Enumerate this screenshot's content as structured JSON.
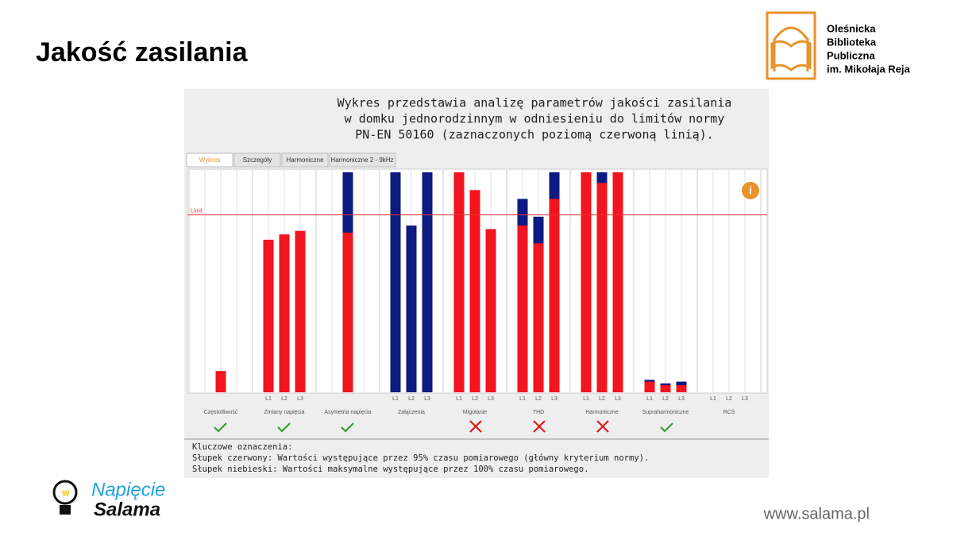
{
  "header": {
    "title": "Jakość zasilania",
    "org": [
      "Oleśnicka",
      "Biblioteka",
      "Publiczna",
      "im. Mikołaja Reja"
    ]
  },
  "footer": {
    "brand": [
      "Napięcie",
      "Salama"
    ],
    "url": "www.salama.pl"
  },
  "panel": {
    "description": [
      "Wykres przedstawia analizę parametrów jakości zasilania",
      "w domku jednorodzinnym w odniesieniu do limitów normy",
      "PN-EN 50160 (zaznaczonych poziomą czerwoną linią)."
    ],
    "tabs": [
      "Wykres",
      "Szczegóły",
      "Harmoniczne",
      "Harmoniczne 2 - 9kHz"
    ],
    "notes": [
      "Kluczowe oznaczenia:",
      "Słupek czerwony: Wartości występujące przez 95% czasu pomiarowego (główny kryterium normy).",
      "Słupek niebieski: Wartości maksymalne występujące przez 100% czasu pomiarowego."
    ]
  },
  "chart_data": {
    "type": "bar",
    "ylim": [
      0,
      124
    ],
    "limit": 100,
    "limit_label": "Limit",
    "limit_color": "#ee3333",
    "groups": [
      "Częstotliwość",
      "Zmiany napięcia",
      "Asymetria napięcia",
      "Załączenia",
      "Migotanie",
      "THD",
      "Harmoniczne",
      "Supraharmoniczne",
      "RCS"
    ],
    "categories": [
      null,
      null,
      null,
      "L1",
      "L2",
      "L3",
      null,
      null,
      null,
      "L1",
      "L2",
      "L3",
      "L1",
      "L2",
      "L3",
      "L1",
      "L2",
      "L3",
      "L1",
      "L2",
      "L3",
      "L1",
      "L2",
      "L3",
      "L1",
      "L2",
      "L3"
    ],
    "series": [
      {
        "color": "#0d1a80",
        "values": [
          null,
          null,
          null,
          null,
          null,
          null,
          null,
          124,
          null,
          124,
          94,
          124,
          null,
          null,
          null,
          109,
          99,
          124,
          null,
          124,
          null,
          7,
          5,
          6,
          null,
          null,
          null
        ]
      },
      {
        "color": "#f2141e",
        "values": [
          null,
          12,
          null,
          86,
          89,
          91,
          null,
          90,
          null,
          null,
          null,
          null,
          124,
          114,
          92,
          94,
          84,
          109,
          124,
          118,
          124,
          6,
          4,
          4,
          null,
          null,
          null
        ]
      }
    ]
  }
}
